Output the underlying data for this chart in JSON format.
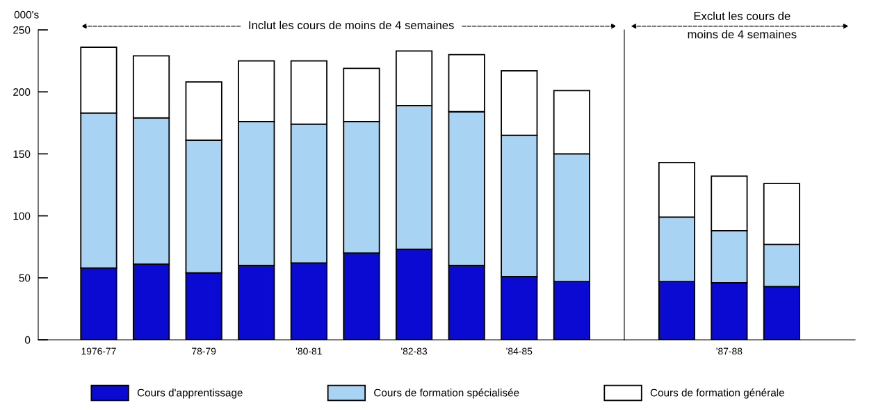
{
  "chart_data": [
    {
      "type": "bar",
      "stacked": true,
      "ylabel": "000's",
      "ylim": [
        0,
        250
      ],
      "yticks": [
        0,
        50,
        100,
        150,
        200,
        250
      ],
      "legend": "bottom",
      "categories": [
        "1976-77",
        null,
        "78-79",
        null,
        "'80-81",
        null,
        "'82-83",
        null,
        "'84-85",
        null
      ],
      "series": [
        {
          "name": "Cours d'apprentissage",
          "color": "#0a0ad2",
          "values": [
            58,
            61,
            54,
            60,
            62,
            70,
            73,
            60,
            51,
            47
          ]
        },
        {
          "name": "Cours de formation spécialisée",
          "color": "#a9d3f3",
          "values": [
            125,
            118,
            107,
            116,
            112,
            106,
            116,
            124,
            114,
            103
          ]
        },
        {
          "name": "Cours de formation générale",
          "color": "#ffffff",
          "values": [
            53,
            50,
            47,
            49,
            51,
            43,
            44,
            46,
            52,
            51
          ]
        }
      ],
      "annotations": [
        "Inclut les cours de moins de 4 semaines"
      ]
    },
    {
      "type": "bar",
      "stacked": true,
      "ylim": [
        0,
        250
      ],
      "tick_labels": "x",
      "categories": [
        null,
        "'87-88",
        null
      ],
      "series": [
        {
          "color": "#0a0ad2",
          "values": [
            47,
            46,
            43
          ]
        },
        {
          "color": "#a9d3f3",
          "values": [
            52,
            42,
            34
          ]
        },
        {
          "color": "#ffffff",
          "values": [
            44,
            44,
            49
          ]
        }
      ],
      "annotations": [
        "Exclut les cours de\nmoins de 4 semaines"
      ]
    }
  ]
}
